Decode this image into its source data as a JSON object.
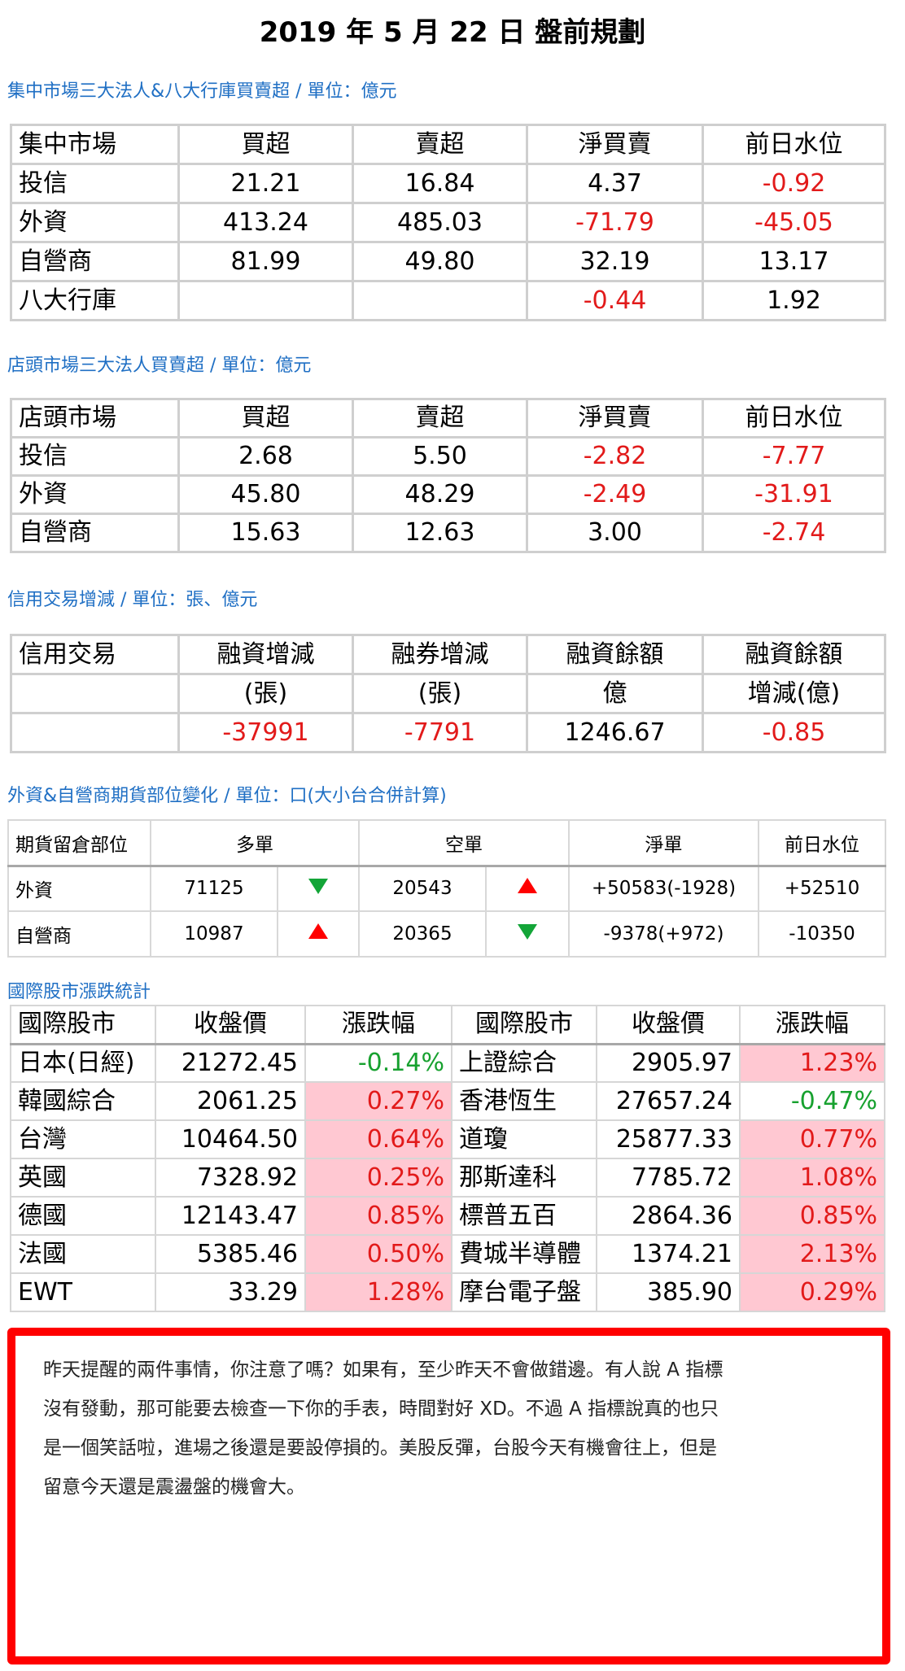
{
  "title": "2019 年 5 月 22 日  盤前規劃",
  "section1": {
    "heading": "集中市場三大法人&八大行庫買賣超 / 單位：億元",
    "headers": [
      "集中市場",
      "買超",
      "賣超",
      "淨買賣",
      "前日水位"
    ],
    "rows": [
      [
        "投信",
        "21.21",
        "16.84",
        "4.37",
        "-0.92"
      ],
      [
        "外資",
        "413.24",
        "485.03",
        "-71.79",
        "-45.05"
      ],
      [
        "自營商",
        "81.99",
        "49.80",
        "32.19",
        "13.17"
      ],
      [
        "八大行庫",
        "",
        "",
        "-0.44",
        "1.92"
      ]
    ]
  },
  "section2": {
    "heading": "店頭市場三大法人買賣超 / 單位：億元",
    "headers": [
      "店頭市場",
      "買超",
      "賣超",
      "淨買賣",
      "前日水位"
    ],
    "rows": [
      [
        "投信",
        "2.68",
        "5.50",
        "-2.82",
        "-7.77"
      ],
      [
        "外資",
        "45.80",
        "48.29",
        "-2.49",
        "-31.91"
      ],
      [
        "自營商",
        "15.63",
        "12.63",
        "3.00",
        "-2.74"
      ]
    ]
  },
  "section3": {
    "heading": "信用交易增減 / 單位：張、億元",
    "headers": [
      "信用交易",
      "融資增減",
      "融券增減",
      "融資餘額",
      "融資餘額"
    ],
    "subheaders": [
      "",
      "(張)",
      "(張)",
      "億",
      "增減(億)"
    ],
    "row": [
      "",
      "-37991",
      "-7791",
      "1246.67",
      "-0.85"
    ]
  },
  "section4": {
    "heading": "外資&自營商期貨部位變化 / 單位：口(大小台合併計算)",
    "headers": [
      "期貨留倉部位",
      "多單",
      "空單",
      "淨單",
      "前日水位"
    ],
    "rows": [
      {
        "label": "外資",
        "long": "71125",
        "long_arrow": "down",
        "short": "20543",
        "short_arrow": "up",
        "net": "+50583(-1928)",
        "prev": "+52510"
      },
      {
        "label": "自營商",
        "long": "10987",
        "long_arrow": "up",
        "short": "20365",
        "short_arrow": "down",
        "net": "-9378(+972)",
        "prev": "-10350"
      }
    ],
    "colors": {
      "up": "#ff0000",
      "down": "#13a538"
    }
  },
  "section5": {
    "heading": "國際股市漲跌統計",
    "headers": [
      "國際股市",
      "收盤價",
      "漲跌幅",
      "國際股市",
      "收盤價",
      "漲跌幅"
    ],
    "rows": [
      [
        "日本(日經)",
        "21272.45",
        "-0.14%",
        "上證綜合",
        "2905.97",
        "1.23%"
      ],
      [
        "韓國綜合",
        "2061.25",
        "0.27%",
        "香港恆生",
        "27657.24",
        "-0.47%"
      ],
      [
        "台灣",
        "10464.50",
        "0.64%",
        "道瓊",
        "25877.33",
        "0.77%"
      ],
      [
        "英國",
        "7328.92",
        "0.25%",
        "那斯達科",
        "7785.72",
        "1.08%"
      ],
      [
        "德國",
        "12143.47",
        "0.85%",
        "標普五百",
        "2864.36",
        "0.85%"
      ],
      [
        "法國",
        "5385.46",
        "0.50%",
        "費城半導體",
        "1374.21",
        "2.13%"
      ],
      [
        "EWT",
        "33.29",
        "1.28%",
        "摩台電子盤",
        "385.90",
        "0.29%"
      ]
    ]
  },
  "note": {
    "lines": [
      "昨天提醒的兩件事情，你注意了嗎？如果有，至少昨天不會做錯邊。有人說 A 指標",
      "沒有發動，那可能要去檢查一下你的手表，時間對好  XD。不過 A 指標說真的也只",
      "是一個笑話啦，進場之後還是要設停損的。美股反彈，台股今天有機會往上，但是",
      "留意今天還是震盪盤的機會大。"
    ]
  }
}
